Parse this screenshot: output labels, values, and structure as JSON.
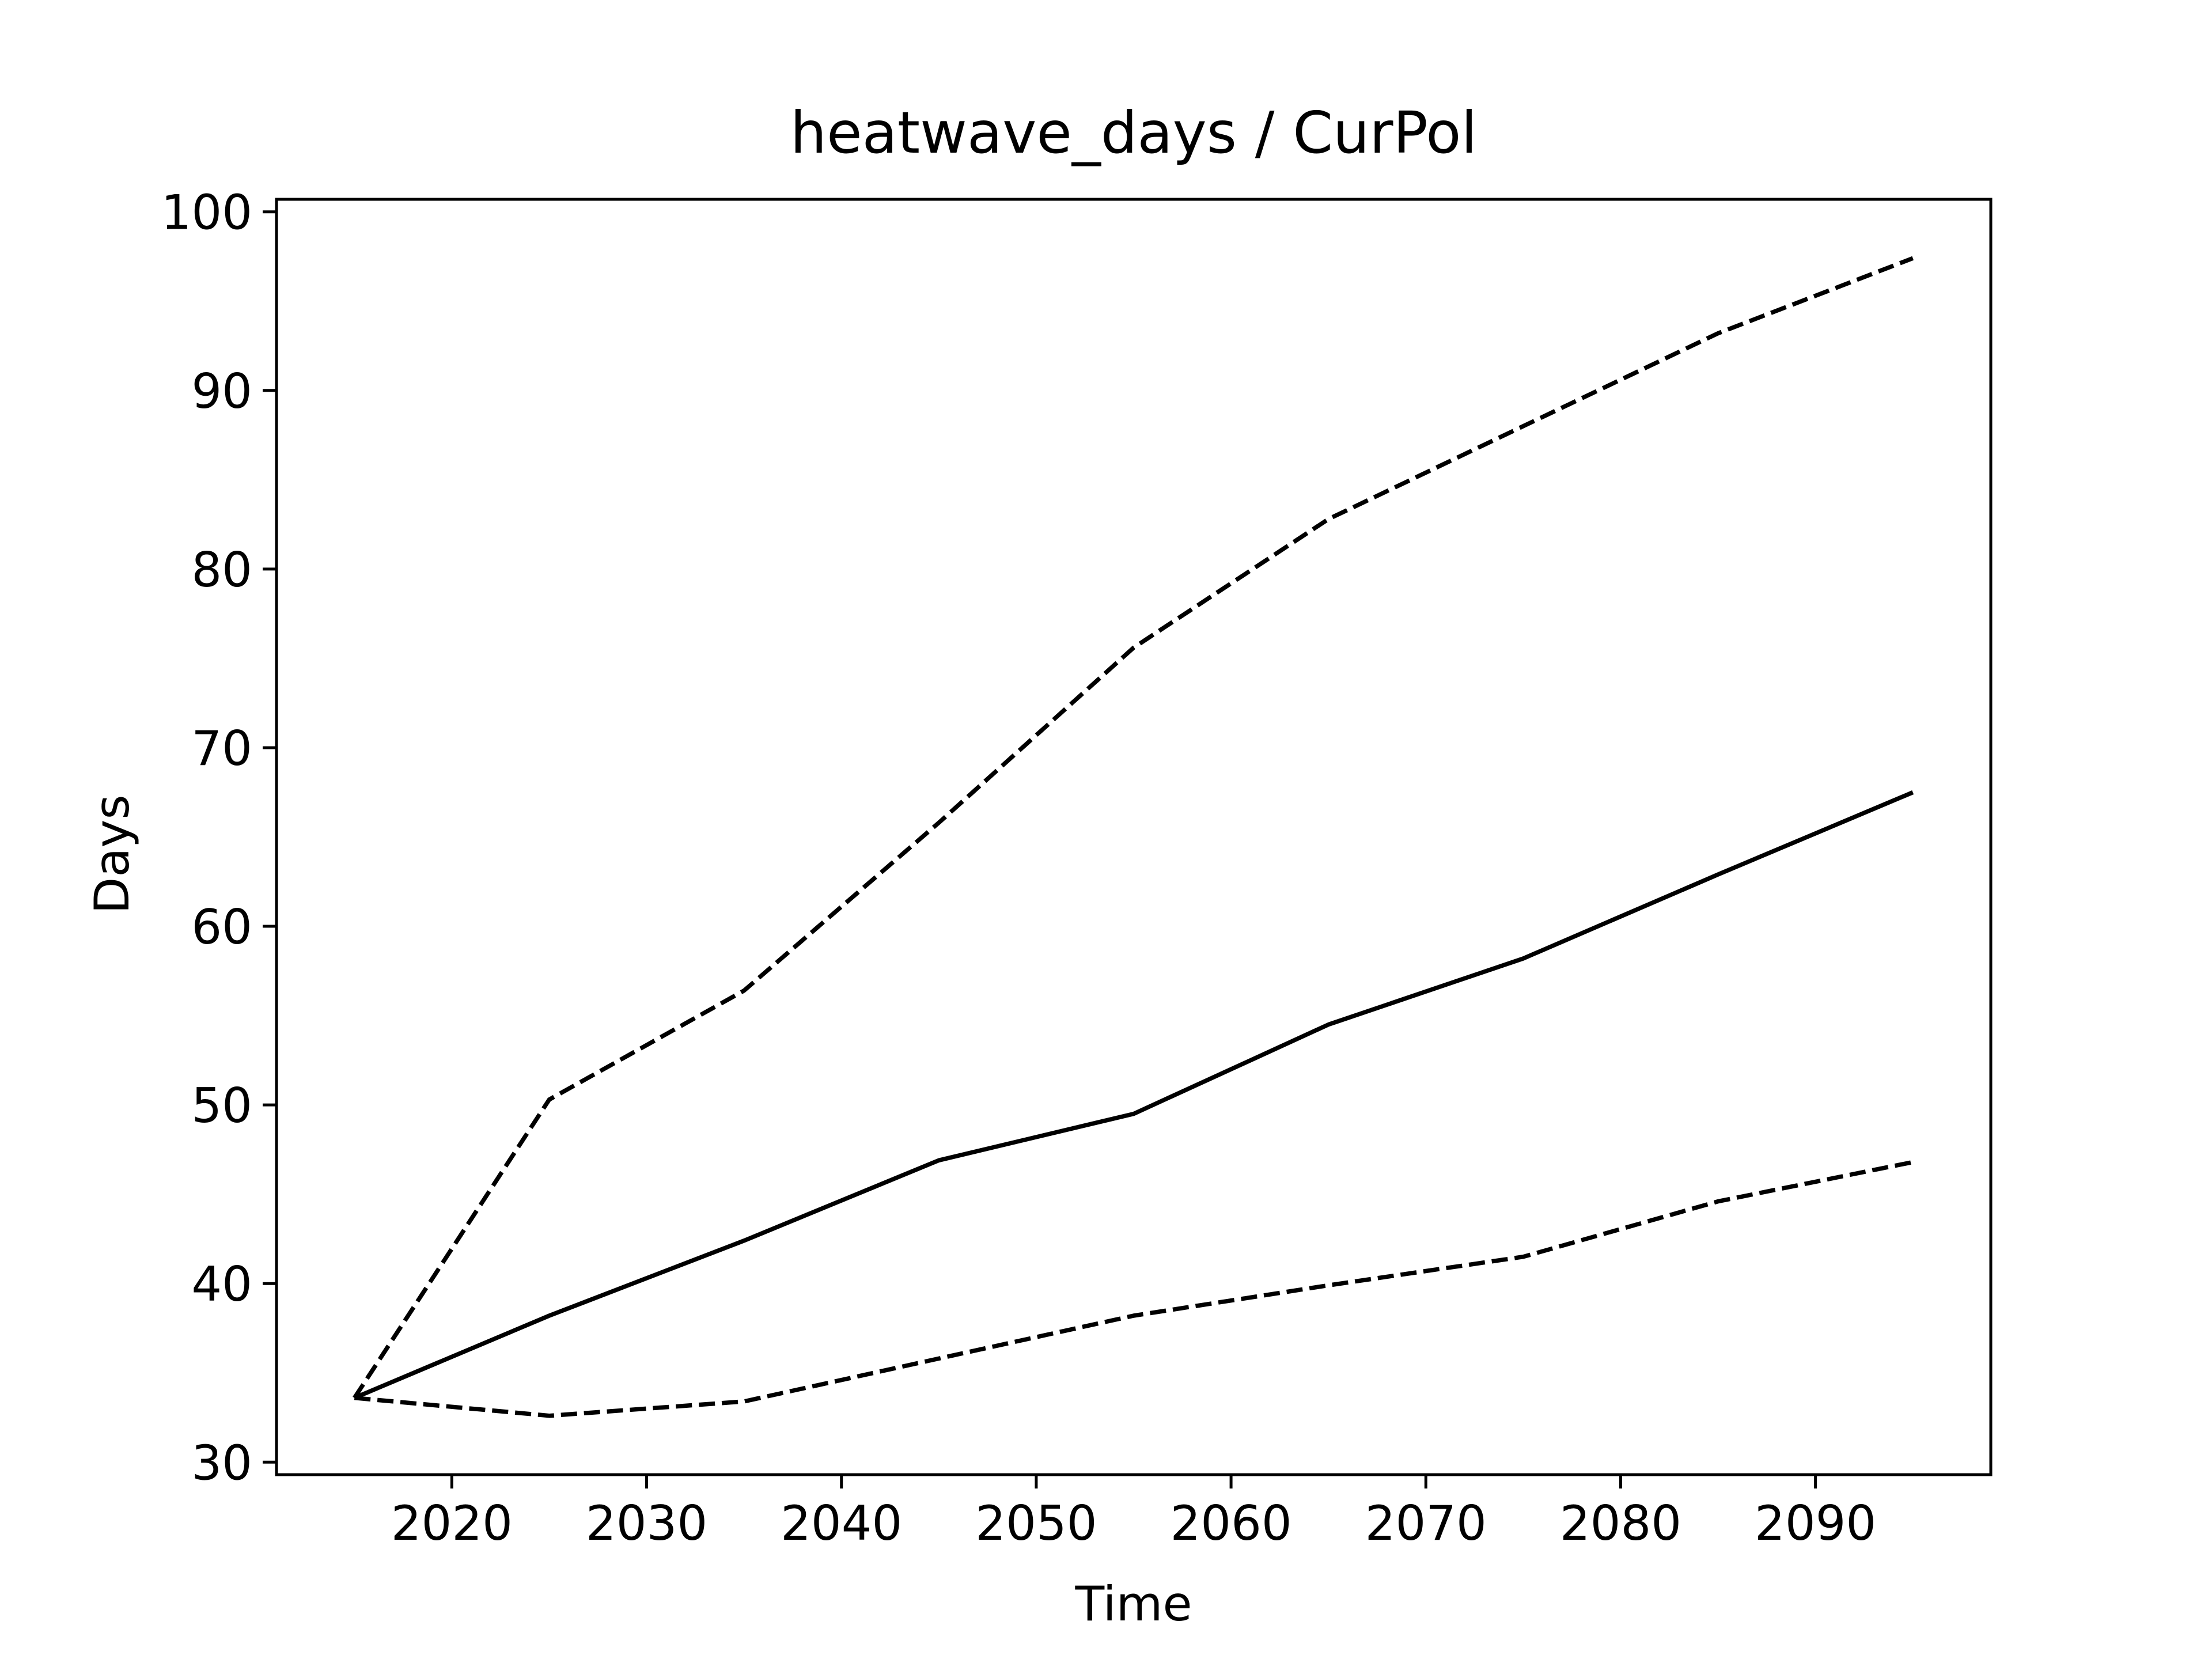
{
  "chart_data": {
    "type": "line",
    "title": "heatwave_days / CurPol",
    "xlabel": "Time",
    "ylabel": "Days",
    "xlim": [
      2011,
      2099
    ],
    "ylim": [
      29.3,
      100.7
    ],
    "x_ticks": [
      2020,
      2030,
      2040,
      2050,
      2060,
      2070,
      2080,
      2090
    ],
    "y_ticks": [
      30,
      40,
      50,
      60,
      70,
      80,
      90,
      100
    ],
    "grid": false,
    "legend": "none",
    "x": [
      2015,
      2025,
      2035,
      2045,
      2055,
      2065,
      2075,
      2085,
      2095
    ],
    "series": [
      {
        "style": "solid",
        "color": "#000000",
        "values": [
          33.6,
          38.2,
          42.4,
          46.9,
          49.5,
          54.5,
          58.2,
          62.9,
          67.5
        ]
      },
      {
        "style": "dashed",
        "color": "#000000",
        "values": [
          33.6,
          50.3,
          56.4,
          65.8,
          75.6,
          82.8,
          88.0,
          93.2,
          97.4
        ]
      },
      {
        "style": "dashed",
        "color": "#000000",
        "values": [
          33.6,
          32.6,
          33.4,
          35.8,
          38.2,
          39.9,
          41.5,
          44.6,
          46.8
        ]
      }
    ]
  }
}
